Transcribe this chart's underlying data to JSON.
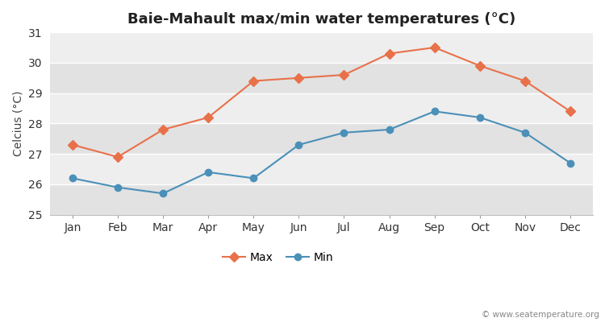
{
  "months": [
    "Jan",
    "Feb",
    "Mar",
    "Apr",
    "May",
    "Jun",
    "Jul",
    "Aug",
    "Sep",
    "Oct",
    "Nov",
    "Dec"
  ],
  "max_temps": [
    27.3,
    26.9,
    27.8,
    28.2,
    29.4,
    29.5,
    29.6,
    30.3,
    30.5,
    29.9,
    29.4,
    28.4
  ],
  "min_temps": [
    26.2,
    25.9,
    25.7,
    26.4,
    26.2,
    27.3,
    27.7,
    27.8,
    28.4,
    28.2,
    27.7,
    26.7
  ],
  "max_color": "#e8714a",
  "min_color": "#4a90b8",
  "title": "Baie-Mahault max/min water temperatures (°C)",
  "ylabel": "Celcius (°C)",
  "ylim": [
    25,
    31
  ],
  "yticks": [
    25,
    26,
    27,
    28,
    29,
    30,
    31
  ],
  "band_light": "#eeeeee",
  "band_dark": "#e2e2e2",
  "outer_bg": "#ffffff",
  "legend_max": "Max",
  "legend_min": "Min",
  "watermark": "© www.seatemperature.org",
  "title_fontsize": 13,
  "label_fontsize": 10,
  "tick_fontsize": 10,
  "marker_max": "D",
  "marker_min": "o"
}
